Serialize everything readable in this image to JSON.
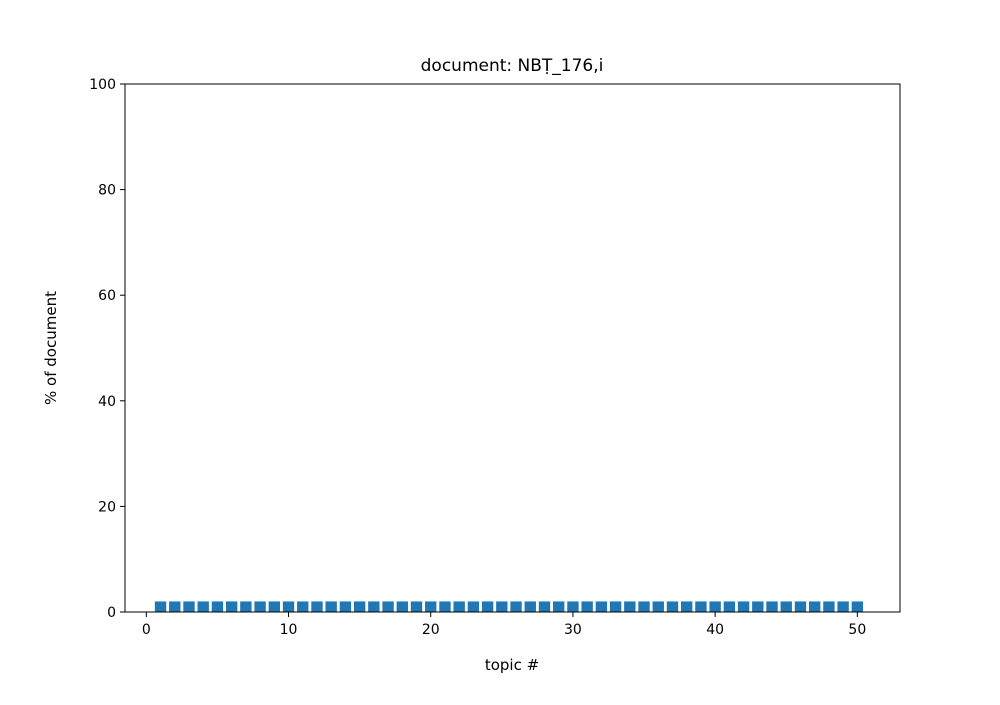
{
  "chart_data": {
    "type": "bar",
    "title": "document: NBṬ_176,i",
    "xlabel": "topic #",
    "ylabel": "% of document",
    "xlim": [
      -1.5,
      53
    ],
    "ylim": [
      0,
      100
    ],
    "x_ticks": [
      0,
      10,
      20,
      30,
      40,
      50
    ],
    "y_ticks": [
      0,
      20,
      40,
      60,
      80,
      100
    ],
    "grid": false,
    "bar_color": "#1f77b4",
    "x": [
      1,
      2,
      3,
      4,
      5,
      6,
      7,
      8,
      9,
      10,
      11,
      12,
      13,
      14,
      15,
      16,
      17,
      18,
      19,
      20,
      21,
      22,
      23,
      24,
      25,
      26,
      27,
      28,
      29,
      30,
      31,
      32,
      33,
      34,
      35,
      36,
      37,
      38,
      39,
      40,
      41,
      42,
      43,
      44,
      45,
      46,
      47,
      48,
      49,
      50
    ],
    "values": [
      2,
      2,
      2,
      2,
      2,
      2,
      2,
      2,
      2,
      2,
      2,
      2,
      2,
      2,
      2,
      2,
      2,
      2,
      2,
      2,
      2,
      2,
      2,
      2,
      2,
      2,
      2,
      2,
      2,
      2,
      2,
      2,
      2,
      2,
      2,
      2,
      2,
      2,
      2,
      2,
      2,
      2,
      2,
      2,
      2,
      2,
      2,
      2,
      2,
      2
    ]
  }
}
